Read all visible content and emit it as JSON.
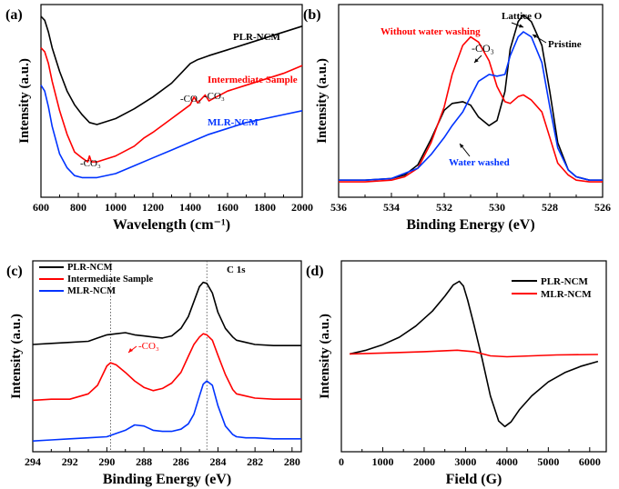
{
  "chart_data": [
    {
      "panel": "(a)",
      "type": "line",
      "xlabel": "Wavelength (cm⁻¹)",
      "ylabel": "Intensity (a.u.)",
      "xlim": [
        600,
        2000
      ],
      "xticks": [
        600,
        800,
        1000,
        1200,
        1400,
        1600,
        1800,
        2000
      ],
      "yticks_shown": false,
      "annotations": [
        {
          "text": "-CO₃",
          "x": 860
        },
        {
          "text": "-CO₃",
          "x": 1420
        },
        {
          "text": "-CO₃",
          "x": 1490
        }
      ],
      "series": [
        {
          "name": "PLR-NCM",
          "color": "#000000",
          "x": [
            600,
            620,
            640,
            660,
            700,
            740,
            780,
            820,
            860,
            900,
            1000,
            1100,
            1200,
            1300,
            1350,
            1400,
            1440,
            1500,
            1600,
            1700,
            1800,
            1900,
            2000
          ],
          "y": [
            9.8,
            9.6,
            9.0,
            8.2,
            7.0,
            6.0,
            5.3,
            4.8,
            4.4,
            4.3,
            4.6,
            5.1,
            5.7,
            6.4,
            6.9,
            7.4,
            7.6,
            7.8,
            8.1,
            8.4,
            8.7,
            9.0,
            9.3
          ]
        },
        {
          "name": "Intermediate Sample",
          "color": "#ff0000",
          "x": [
            600,
            620,
            640,
            660,
            700,
            740,
            780,
            820,
            850,
            860,
            870,
            900,
            1000,
            1100,
            1150,
            1200,
            1300,
            1400,
            1420,
            1440,
            1480,
            1500,
            1520,
            1600,
            1700,
            1800,
            1900,
            2000
          ],
          "y": [
            8.2,
            8.0,
            7.4,
            6.5,
            5.0,
            3.8,
            2.9,
            2.6,
            2.4,
            2.7,
            2.4,
            2.4,
            2.7,
            3.2,
            3.6,
            3.9,
            4.6,
            5.3,
            5.7,
            5.4,
            5.8,
            5.5,
            5.6,
            6.0,
            6.3,
            6.6,
            6.9,
            7.3
          ]
        },
        {
          "name": "MLR-NCM",
          "color": "#0033ff",
          "x": [
            600,
            620,
            640,
            660,
            700,
            740,
            780,
            820,
            860,
            900,
            1000,
            1100,
            1200,
            1300,
            1400,
            1500,
            1600,
            1700,
            1800,
            1900,
            2000
          ],
          "y": [
            6.3,
            6.0,
            5.2,
            4.2,
            2.8,
            2.1,
            1.7,
            1.6,
            1.6,
            1.6,
            1.8,
            2.2,
            2.6,
            3.0,
            3.4,
            3.8,
            4.1,
            4.4,
            4.6,
            4.8,
            5.0
          ]
        }
      ]
    },
    {
      "panel": "(b)",
      "type": "line",
      "xlabel": "Binding Energy (eV)",
      "ylabel": "Intensity (a.u.)",
      "xlim": [
        536,
        526
      ],
      "xticks": [
        536,
        534,
        532,
        530,
        528,
        526
      ],
      "yticks_shown": false,
      "annotations": [
        {
          "text": "Lattice O"
        },
        {
          "text": "Pristine"
        },
        {
          "text": "Without water washing"
        },
        {
          "text": "-CO₃"
        },
        {
          "text": "Water washed"
        }
      ],
      "series": [
        {
          "name": "Pristine",
          "color": "#000000",
          "x": [
            536,
            535,
            534,
            533.5,
            533,
            532.5,
            532,
            531.7,
            531.3,
            531,
            530.7,
            530.3,
            530,
            529.7,
            529.5,
            529.2,
            529,
            528.7,
            528.3,
            528,
            527.7,
            527.3,
            527,
            526.5,
            526
          ],
          "y": [
            0.3,
            0.3,
            0.4,
            0.6,
            1.2,
            2.7,
            4.4,
            4.8,
            4.9,
            4.7,
            4.0,
            3.5,
            3.8,
            5.5,
            8.0,
            9.6,
            10.0,
            9.6,
            8.2,
            5.5,
            2.5,
            0.9,
            0.5,
            0.3,
            0.3
          ]
        },
        {
          "name": "Without water washing",
          "color": "#ff0000",
          "x": [
            536,
            535,
            534,
            533.5,
            533,
            532.5,
            532,
            531.7,
            531.3,
            531,
            530.7,
            530.3,
            530,
            529.7,
            529.5,
            529.2,
            529,
            528.7,
            528.3,
            528,
            527.7,
            527.3,
            527,
            526.5,
            526
          ],
          "y": [
            0.2,
            0.2,
            0.3,
            0.5,
            1.0,
            2.5,
            4.6,
            6.5,
            8.2,
            8.7,
            8.4,
            7.3,
            5.8,
            4.9,
            4.8,
            5.2,
            5.3,
            5.0,
            4.3,
            2.8,
            1.3,
            0.6,
            0.3,
            0.2,
            0.2
          ]
        },
        {
          "name": "Water washed",
          "color": "#0033ff",
          "x": [
            536,
            535,
            534,
            533.5,
            533,
            532.5,
            532,
            531.7,
            531.3,
            531,
            530.7,
            530.3,
            530,
            529.7,
            529.5,
            529.2,
            529,
            528.7,
            528.3,
            528,
            527.7,
            527.3,
            527,
            526.5,
            526
          ],
          "y": [
            0.3,
            0.3,
            0.4,
            0.7,
            1.0,
            1.8,
            2.8,
            3.5,
            4.3,
            5.2,
            6.1,
            6.5,
            6.4,
            6.5,
            7.6,
            8.7,
            9.0,
            8.7,
            7.2,
            4.6,
            2.2,
            0.9,
            0.5,
            0.3,
            0.3
          ]
        }
      ]
    },
    {
      "panel": "(c)",
      "type": "line",
      "title": "C 1s",
      "xlabel": "Binding Energy (eV)",
      "ylabel": "Intensity (a.u.)",
      "xlim": [
        294,
        279.5
      ],
      "xticks": [
        294,
        292,
        290,
        288,
        286,
        284,
        282,
        280
      ],
      "yticks_shown": false,
      "reference_lines_x": [
        289.8,
        284.6
      ],
      "annotations": [
        {
          "text": "-CO₃",
          "x": 289.8
        },
        {
          "text": "C 1s",
          "x": 284.6
        }
      ],
      "legend": "top-left",
      "series": [
        {
          "name": "PLR-NCM",
          "color": "#000000",
          "x": [
            294,
            293,
            292,
            291,
            290.5,
            290,
            289.5,
            289,
            288.5,
            288,
            287.5,
            287,
            286.5,
            286,
            285.6,
            285.3,
            285,
            284.8,
            284.6,
            284.3,
            284,
            283.6,
            283.2,
            283,
            282.5,
            282,
            281,
            280,
            279.5
          ],
          "y": [
            1.0,
            1.1,
            1.2,
            1.3,
            1.6,
            1.9,
            2.0,
            2.1,
            1.9,
            1.8,
            1.7,
            1.6,
            1.8,
            2.5,
            3.6,
            5.0,
            6.4,
            6.8,
            6.7,
            5.8,
            4.0,
            2.5,
            1.7,
            1.4,
            1.2,
            1.0,
            0.9,
            0.9,
            0.9
          ]
        },
        {
          "name": "Intermediate Sample",
          "color": "#ff0000",
          "x": [
            294,
            293,
            292,
            291,
            290.5,
            290,
            289.8,
            289.5,
            289,
            288.5,
            288,
            287.5,
            287,
            286.5,
            286,
            285.6,
            285.3,
            285,
            284.8,
            284.6,
            284.3,
            284,
            283.6,
            283.2,
            283,
            282.5,
            282,
            281,
            280,
            279.5
          ],
          "y": [
            -4.2,
            -4.1,
            -4.1,
            -3.6,
            -2.8,
            -1.0,
            -0.7,
            -0.9,
            -1.6,
            -2.4,
            -3.0,
            -3.3,
            -3.1,
            -2.6,
            -1.6,
            -0.1,
            1.0,
            1.7,
            2.0,
            1.9,
            1.4,
            0.0,
            -1.8,
            -3.2,
            -3.6,
            -3.8,
            -4.0,
            -4.1,
            -4.1,
            -4.1
          ]
        },
        {
          "name": "MLR-NCM",
          "color": "#0033ff",
          "x": [
            294,
            293,
            292,
            291,
            290,
            289.5,
            289,
            288.5,
            288,
            287.5,
            287,
            286.5,
            286,
            285.6,
            285.3,
            285,
            284.8,
            284.6,
            284.3,
            284,
            283.6,
            283.2,
            283,
            282.5,
            282,
            281,
            280,
            279.5
          ],
          "y": [
            -8.0,
            -7.9,
            -7.8,
            -7.7,
            -7.6,
            -7.3,
            -7.0,
            -6.5,
            -6.6,
            -7.0,
            -7.1,
            -7.1,
            -6.9,
            -6.4,
            -5.5,
            -3.8,
            -2.7,
            -2.4,
            -2.8,
            -4.7,
            -6.6,
            -7.4,
            -7.6,
            -7.7,
            -7.7,
            -7.8,
            -7.8,
            -7.8
          ]
        }
      ]
    },
    {
      "panel": "(d)",
      "type": "line",
      "xlabel": "Field (G)",
      "ylabel": "Intensity (a.u.)",
      "xlim": [
        0,
        6400
      ],
      "xticks": [
        0,
        1000,
        2000,
        3000,
        4000,
        5000,
        6000
      ],
      "yticks_shown": false,
      "legend": "top-right",
      "series": [
        {
          "name": "PLR-NCM",
          "color": "#000000",
          "x": [
            200,
            600,
            1000,
            1400,
            1800,
            2200,
            2500,
            2700,
            2850,
            2950,
            3050,
            3200,
            3400,
            3600,
            3800,
            3950,
            4100,
            4300,
            4600,
            5000,
            5400,
            5800,
            6200
          ],
          "y": [
            0.0,
            0.4,
            1.0,
            1.8,
            3.0,
            4.6,
            6.2,
            7.4,
            7.8,
            7.3,
            5.8,
            3.2,
            -0.5,
            -4.5,
            -7.2,
            -7.8,
            -7.3,
            -6.0,
            -4.5,
            -3.0,
            -2.0,
            -1.3,
            -0.8
          ]
        },
        {
          "name": "MLR-NCM",
          "color": "#ff0000",
          "x": [
            200,
            1000,
            2000,
            2800,
            3200,
            3600,
            4000,
            4600,
            5200,
            6200
          ],
          "y": [
            0.0,
            0.1,
            0.25,
            0.4,
            0.25,
            -0.2,
            -0.3,
            -0.2,
            -0.1,
            -0.05
          ]
        }
      ]
    }
  ]
}
